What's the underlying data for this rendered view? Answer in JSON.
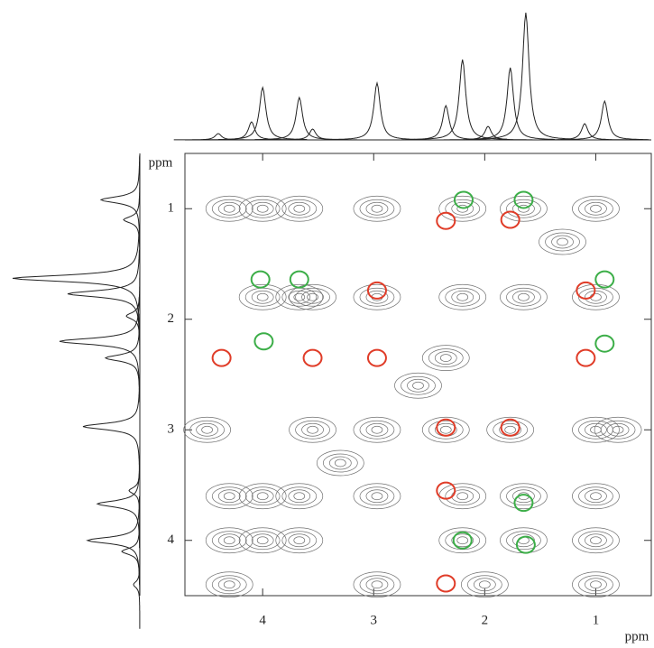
{
  "chart_data": {
    "type": "nmr2d",
    "xlabel": "ppm",
    "ylabel": "ppm",
    "xlim": [
      4.7,
      0.5
    ],
    "ylim": [
      0.5,
      4.5
    ],
    "xticks": [
      4,
      3,
      2,
      1
    ],
    "yticks": [
      1,
      2,
      3,
      4
    ],
    "projection": {
      "color": "#222222",
      "ppm": [
        4.4,
        4.1,
        4.0,
        3.67,
        3.55,
        2.97,
        2.35,
        2.2,
        1.97,
        1.77,
        1.63,
        1.1,
        0.92
      ],
      "intensity": [
        7,
        20,
        58,
        47,
        12,
        63,
        38,
        89,
        15,
        80,
        141,
        18,
        43
      ]
    },
    "cross_peaks": {
      "color": "#707070",
      "x": [
        4.3,
        4.0,
        3.67,
        2.97,
        2.2,
        1.65,
        1.0,
        4.0,
        3.67,
        3.55,
        2.97,
        2.2,
        1.65,
        1.0,
        4.5,
        3.55,
        2.97,
        2.35,
        1.77,
        1.0,
        0.8,
        4.3,
        4.0,
        3.67,
        2.97,
        2.2,
        1.65,
        1.0,
        4.3,
        4.0,
        3.67,
        2.2,
        1.65,
        1.0,
        4.3,
        2.97,
        2.0,
        1.0,
        3.3,
        2.6,
        2.35,
        1.3
      ],
      "y": [
        1.0,
        1.0,
        1.0,
        1.0,
        1.0,
        1.0,
        1.0,
        1.8,
        1.8,
        1.8,
        1.8,
        1.8,
        1.8,
        1.8,
        3.0,
        3.0,
        3.0,
        3.0,
        3.0,
        3.0,
        3.0,
        3.6,
        3.6,
        3.6,
        3.6,
        3.6,
        3.6,
        3.6,
        4.0,
        4.0,
        4.0,
        4.0,
        4.0,
        4.0,
        4.4,
        4.4,
        4.4,
        4.4,
        3.3,
        2.6,
        2.35,
        1.3
      ]
    },
    "series": [
      {
        "color": "#e03c28",
        "x": [
          2.35,
          1.77,
          2.97,
          1.09,
          4.37,
          3.55,
          2.97,
          1.09,
          2.35,
          1.77,
          2.35,
          2.35
        ],
        "y": [
          1.11,
          1.1,
          1.74,
          1.74,
          2.35,
          2.35,
          2.35,
          2.35,
          2.98,
          2.98,
          3.55,
          4.39
        ]
      },
      {
        "color": "#3cae48",
        "x": [
          2.19,
          1.65,
          4.02,
          3.67,
          0.92,
          3.99,
          0.92,
          1.65,
          2.2,
          1.63
        ],
        "y": [
          0.92,
          0.92,
          1.64,
          1.64,
          1.64,
          2.2,
          2.22,
          3.66,
          4.0,
          4.04
        ]
      }
    ]
  }
}
